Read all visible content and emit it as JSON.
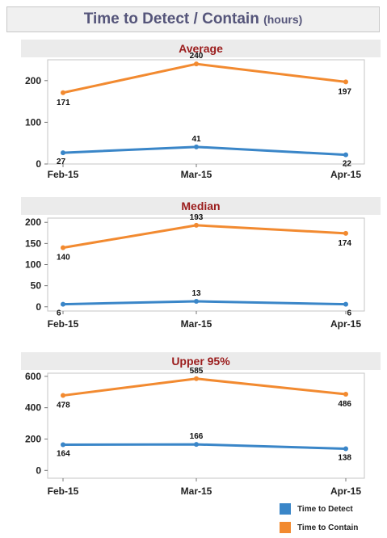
{
  "title": {
    "main": "Time to Detect / Contain",
    "unit": "(hours)"
  },
  "colors": {
    "detect": "#3a86c8",
    "contain": "#f28a30",
    "panel_title": "#9b1c1c"
  },
  "chart_data": [
    {
      "type": "line",
      "title": "Average",
      "categories": [
        "Feb-15",
        "Mar-15",
        "Apr-15"
      ],
      "ylim": [
        0,
        250
      ],
      "yticks": [
        0,
        100,
        200
      ],
      "series": [
        {
          "name": "Time to Detect",
          "values": [
            27,
            41,
            22
          ]
        },
        {
          "name": "Time to Contain",
          "values": [
            171,
            240,
            197
          ]
        }
      ]
    },
    {
      "type": "line",
      "title": "Median",
      "categories": [
        "Feb-15",
        "Mar-15",
        "Apr-15"
      ],
      "ylim": [
        -10,
        210
      ],
      "yticks": [
        0,
        50,
        100,
        150,
        200
      ],
      "series": [
        {
          "name": "Time to Detect",
          "values": [
            6,
            13,
            6
          ]
        },
        {
          "name": "Time to Contain",
          "values": [
            140,
            193,
            174
          ]
        }
      ]
    },
    {
      "type": "line",
      "title": "Upper 95%",
      "categories": [
        "Feb-15",
        "Mar-15",
        "Apr-15"
      ],
      "ylim": [
        -50,
        620
      ],
      "yticks": [
        0,
        200,
        400,
        600
      ],
      "series": [
        {
          "name": "Time to Detect",
          "values": [
            164,
            166,
            138
          ]
        },
        {
          "name": "Time to Contain",
          "values": [
            478,
            585,
            486
          ]
        }
      ]
    }
  ],
  "legend": {
    "placement": "bottom-right",
    "items": [
      "Time to Detect",
      "Time to Contain"
    ]
  }
}
